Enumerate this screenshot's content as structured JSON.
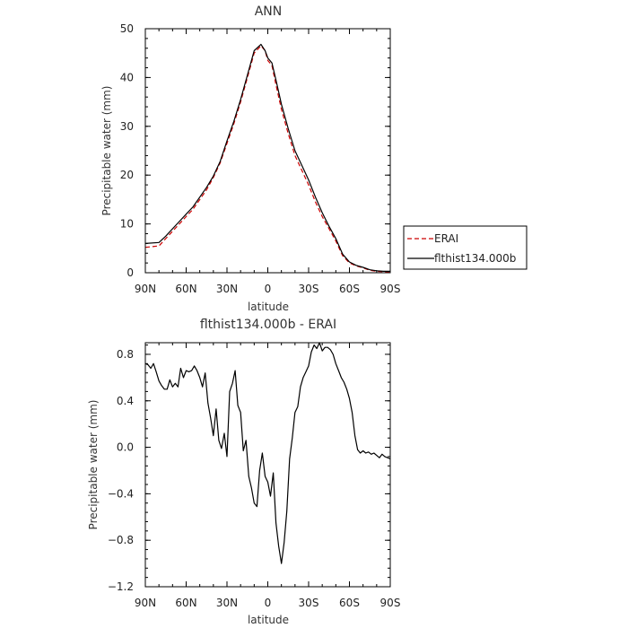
{
  "chart_data": [
    {
      "type": "line",
      "title": "ANN",
      "xlabel": "latitude",
      "ylabel": "Precipitable water (mm)",
      "xlim": [
        90,
        -90
      ],
      "ylim": [
        0,
        50
      ],
      "xticks": [
        90,
        60,
        30,
        0,
        -30,
        -60,
        -90
      ],
      "xtick_labels": [
        "90N",
        "60N",
        "30N",
        "0",
        "30S",
        "60S",
        "90S"
      ],
      "yticks": [
        0,
        10,
        20,
        30,
        40,
        50
      ],
      "ytick_labels": [
        "0",
        "10",
        "20",
        "30",
        "40",
        "50"
      ],
      "grid": false,
      "legend": "right",
      "series": [
        {
          "name": "ERAI",
          "color": "#cc0000",
          "style": "dashed",
          "x": [
            90,
            80,
            75,
            70,
            65,
            60,
            55,
            50,
            45,
            40,
            35,
            30,
            25,
            20,
            15,
            10,
            5,
            2,
            0,
            -3,
            -6,
            -10,
            -15,
            -20,
            -25,
            -30,
            -35,
            -40,
            -45,
            -50,
            -55,
            -60,
            -65,
            -70,
            -75,
            -80,
            -85,
            -90
          ],
          "y": [
            5.2,
            5.5,
            7,
            8.5,
            10,
            11.5,
            13,
            15,
            17,
            19.5,
            22.5,
            26.5,
            30.5,
            35,
            40,
            45,
            46.5,
            45.5,
            43.5,
            42.5,
            38.5,
            33.5,
            28.5,
            24,
            21,
            18,
            14.5,
            11.5,
            9,
            6.5,
            3.5,
            2,
            1.4,
            1,
            0.5,
            0.3,
            0.2,
            0.2
          ]
        },
        {
          "name": "flthist134.000b",
          "color": "#000000",
          "style": "solid",
          "x": [
            90,
            80,
            75,
            70,
            65,
            60,
            55,
            50,
            45,
            40,
            35,
            30,
            25,
            20,
            15,
            10,
            5,
            2,
            0,
            -3,
            -6,
            -10,
            -15,
            -20,
            -25,
            -30,
            -35,
            -40,
            -45,
            -50,
            -55,
            -60,
            -65,
            -70,
            -75,
            -80,
            -85,
            -90
          ],
          "y": [
            6,
            6.2,
            7.5,
            9,
            10.5,
            12,
            13.5,
            15.5,
            17.5,
            19.8,
            22.8,
            27,
            31,
            35.5,
            40.5,
            45.5,
            46.8,
            45.5,
            44,
            43,
            39.5,
            34.5,
            29.5,
            25,
            22,
            19,
            15.5,
            12.3,
            9.5,
            7,
            3.8,
            2.2,
            1.5,
            1.1,
            0.6,
            0.4,
            0.3,
            0.3
          ]
        }
      ]
    },
    {
      "type": "line",
      "title": "flthist134.000b - ERAI",
      "xlabel": "latitude",
      "ylabel": "Precipitable water (mm)",
      "xlim": [
        90,
        -90
      ],
      "ylim": [
        -1.2,
        0.9
      ],
      "xticks": [
        90,
        60,
        30,
        0,
        -30,
        -60,
        -90
      ],
      "xtick_labels": [
        "90N",
        "60N",
        "30N",
        "0",
        "30S",
        "60S",
        "90S"
      ],
      "yticks": [
        0.8,
        0.4,
        0,
        -0.4,
        -0.8,
        -1.2
      ],
      "ytick_labels": [
        "0.8",
        "0.4",
        "0.0",
        "−0.4",
        "−0.8",
        "−1.2"
      ],
      "grid": false,
      "series": [
        {
          "name": "",
          "color": "#000000",
          "style": "solid",
          "x": [
            90,
            88,
            86,
            84,
            82,
            80,
            78,
            76,
            74,
            72,
            70,
            68,
            66,
            64,
            62,
            60,
            58,
            56,
            54,
            52,
            50,
            48,
            46,
            44,
            42,
            40,
            38,
            36,
            34,
            32,
            30,
            28,
            26,
            24,
            22,
            20,
            18,
            16,
            14,
            12,
            10,
            8,
            6,
            4,
            2,
            0,
            -2,
            -4,
            -6,
            -8,
            -10,
            -12,
            -14,
            -16,
            -18,
            -20,
            -22,
            -24,
            -26,
            -28,
            -30,
            -32,
            -34,
            -36,
            -38,
            -40,
            -42,
            -44,
            -46,
            -48,
            -50,
            -52,
            -54,
            -56,
            -58,
            -60,
            -62,
            -64,
            -66,
            -68,
            -70,
            -72,
            -74,
            -76,
            -78,
            -80,
            -82,
            -84,
            -86,
            -88,
            -90
          ],
          "y": [
            0.72,
            0.71,
            0.68,
            0.72,
            0.65,
            0.57,
            0.53,
            0.5,
            0.5,
            0.58,
            0.52,
            0.55,
            0.52,
            0.68,
            0.6,
            0.66,
            0.65,
            0.66,
            0.7,
            0.66,
            0.6,
            0.52,
            0.64,
            0.38,
            0.25,
            0.1,
            0.33,
            0.06,
            -0.01,
            0.12,
            -0.08,
            0.48,
            0.55,
            0.66,
            0.36,
            0.3,
            -0.03,
            0.06,
            -0.25,
            -0.35,
            -0.48,
            -0.51,
            -0.2,
            -0.05,
            -0.25,
            -0.3,
            -0.42,
            -0.22,
            -0.65,
            -0.85,
            -1.0,
            -0.82,
            -0.55,
            -0.1,
            0.08,
            0.3,
            0.35,
            0.52,
            0.6,
            0.65,
            0.7,
            0.82,
            0.88,
            0.85,
            0.9,
            0.83,
            0.86,
            0.86,
            0.84,
            0.8,
            0.72,
            0.66,
            0.6,
            0.56,
            0.5,
            0.42,
            0.3,
            0.1,
            -0.02,
            -0.05,
            -0.03,
            -0.05,
            -0.04,
            -0.06,
            -0.05,
            -0.07,
            -0.09,
            -0.06,
            -0.08,
            -0.09,
            -0.1
          ]
        }
      ]
    }
  ]
}
